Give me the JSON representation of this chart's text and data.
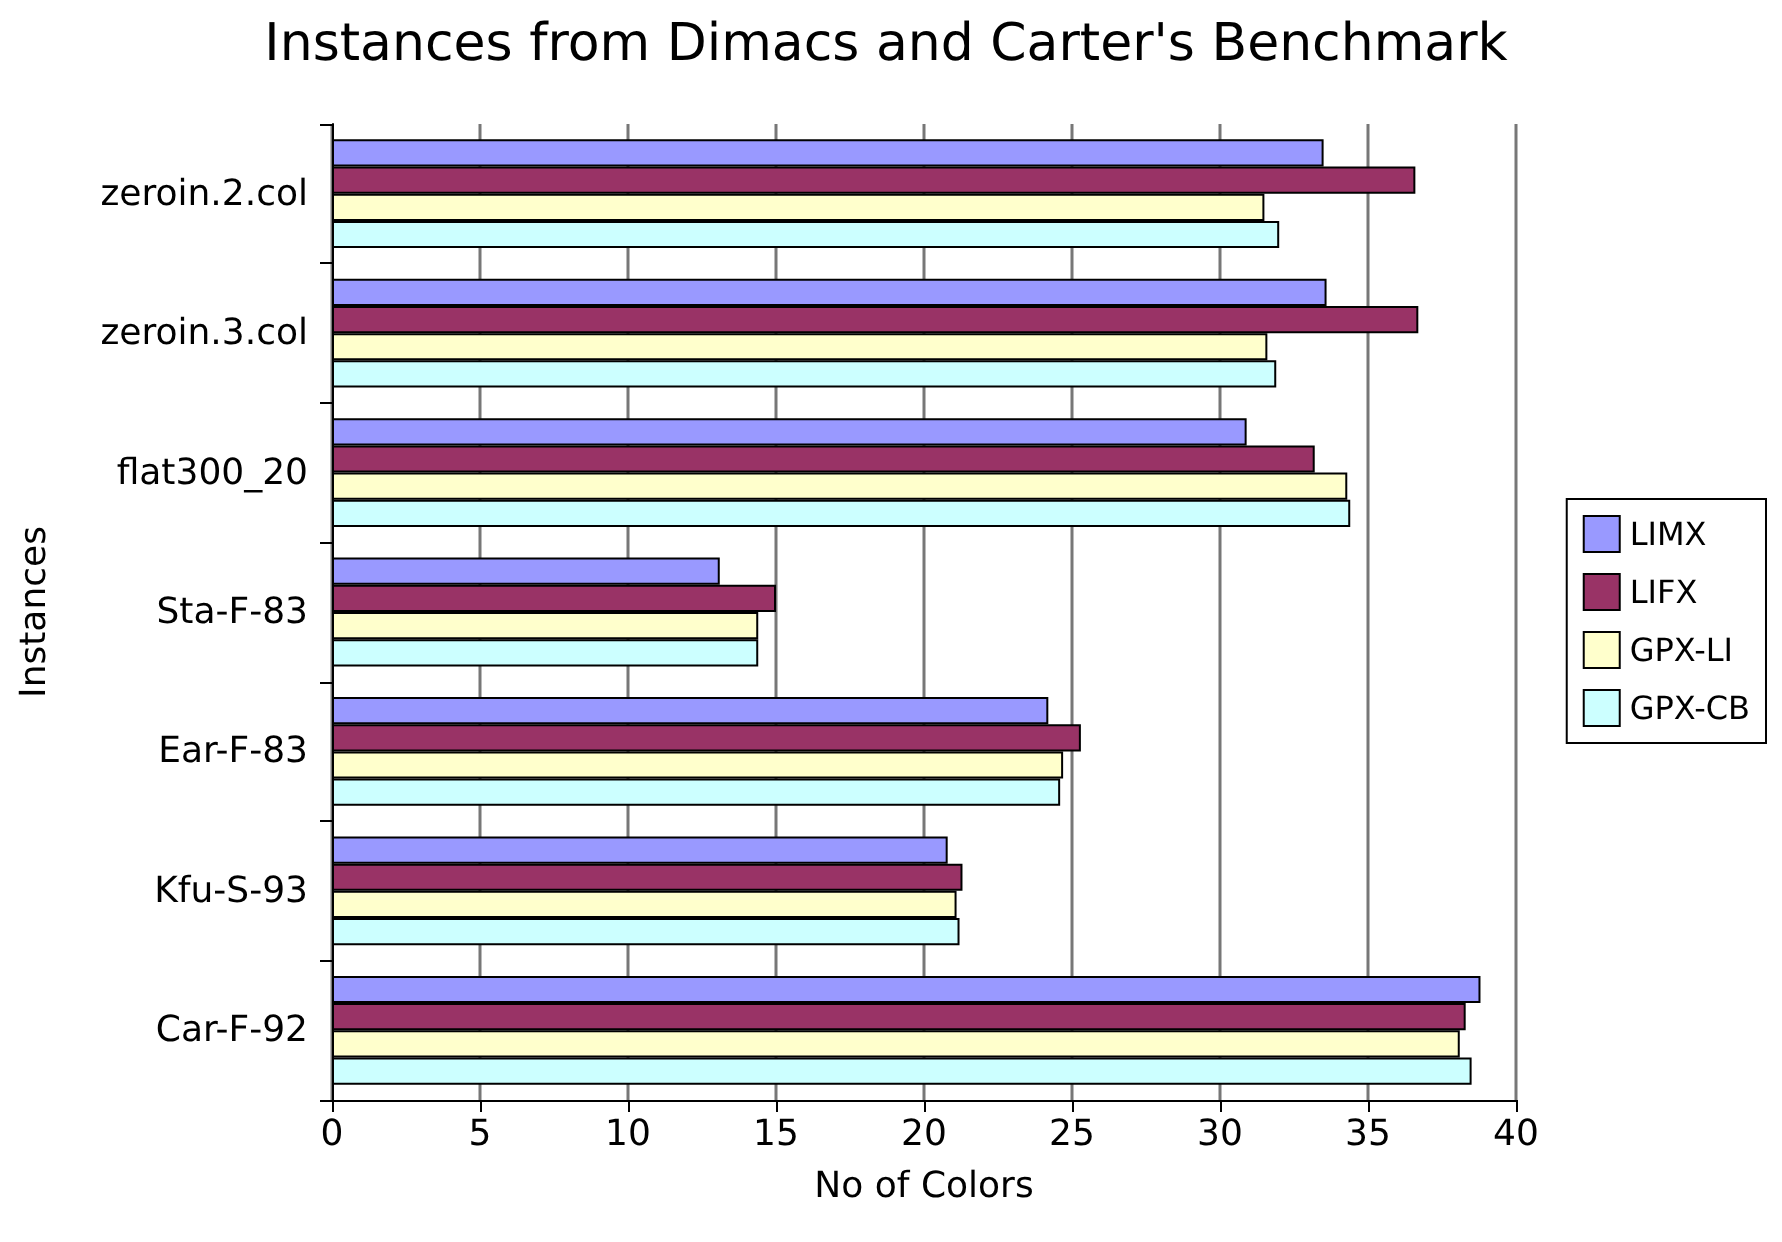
{
  "chart_data": {
    "type": "bar",
    "orientation": "horizontal",
    "title": "Instances from Dimacs and Carter's Benchmark",
    "xlabel": "No of Colors",
    "ylabel": "Instances",
    "categories": [
      "zeroin.2.col",
      "zeroin.3.col",
      "flat300_20",
      "Sta-F-83",
      "Ear-F-83",
      "Kfu-S-93",
      "Car-F-92"
    ],
    "series": [
      {
        "name": "LIMX",
        "color": "#9999ff",
        "values": [
          33.5,
          33.6,
          30.9,
          13.1,
          24.2,
          20.8,
          38.8
        ]
      },
      {
        "name": "LIFX",
        "color": "#993366",
        "values": [
          36.6,
          36.7,
          33.2,
          15.0,
          25.3,
          21.3,
          38.3
        ]
      },
      {
        "name": "GPX-LI",
        "color": "#ffffcc",
        "values": [
          31.5,
          31.6,
          34.3,
          14.4,
          24.7,
          21.1,
          38.1
        ]
      },
      {
        "name": "GPX-CB",
        "color": "#ccffff",
        "values": [
          32.0,
          31.9,
          34.4,
          14.4,
          24.6,
          21.2,
          38.5
        ]
      }
    ],
    "xlim": [
      0,
      40
    ],
    "xticks": [
      0,
      5,
      10,
      15,
      20,
      25,
      30,
      35,
      40
    ],
    "grid": "x",
    "legend": "right"
  }
}
